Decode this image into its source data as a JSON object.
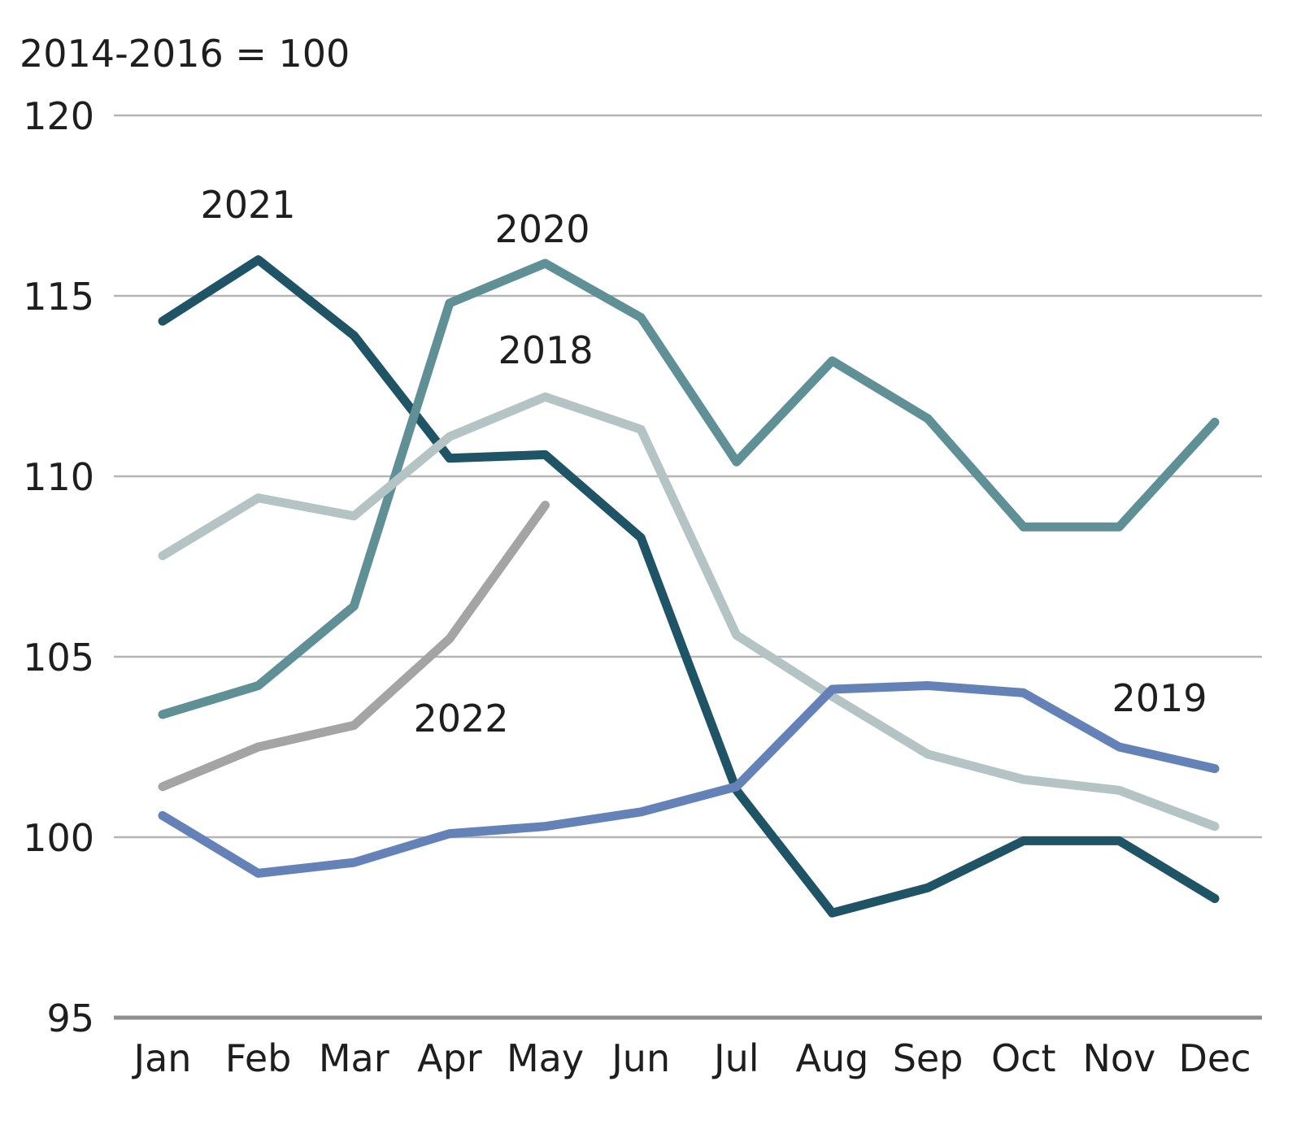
{
  "chart_data": {
    "type": "line",
    "unit_label": "2014-2016 = 100",
    "categories": [
      "Jan",
      "Feb",
      "Mar",
      "Apr",
      "May",
      "Jun",
      "Jul",
      "Aug",
      "Sep",
      "Oct",
      "Nov",
      "Dec"
    ],
    "ylim": [
      95,
      120
    ],
    "yticks": [
      120,
      115,
      110,
      105,
      100,
      95
    ],
    "grid": true,
    "series": [
      {
        "name": "2021",
        "color": "#1f5466",
        "values": [
          114.3,
          116.0,
          113.9,
          110.5,
          110.6,
          108.3,
          101.3,
          97.9,
          98.6,
          99.9,
          99.9,
          98.3
        ]
      },
      {
        "name": "2020",
        "color": "#5e9096",
        "values": [
          103.4,
          104.2,
          106.4,
          114.8,
          115.9,
          114.4,
          110.4,
          113.2,
          111.6,
          108.6,
          108.6,
          111.5
        ]
      },
      {
        "name": "2018",
        "color": "#b4c3c4",
        "values": [
          107.8,
          109.4,
          108.9,
          111.1,
          112.2,
          111.3,
          105.6,
          103.9,
          102.3,
          101.6,
          101.3,
          100.3
        ]
      },
      {
        "name": "2022",
        "color": "#a4a4a4",
        "values": [
          101.4,
          102.5,
          103.1,
          105.5,
          109.2,
          null,
          null,
          null,
          null,
          null,
          null,
          null
        ]
      },
      {
        "name": "2019",
        "color": "#6582b8",
        "values": [
          100.6,
          99.0,
          99.3,
          100.1,
          100.3,
          100.7,
          101.4,
          104.1,
          104.2,
          104.0,
          102.5,
          101.9
        ]
      }
    ]
  }
}
